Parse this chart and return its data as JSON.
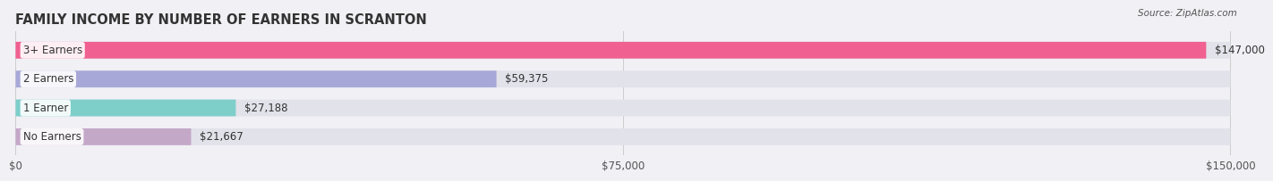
{
  "title": "FAMILY INCOME BY NUMBER OF EARNERS IN SCRANTON",
  "source": "Source: ZipAtlas.com",
  "categories": [
    "No Earners",
    "1 Earner",
    "2 Earners",
    "3+ Earners"
  ],
  "values": [
    21667,
    27188,
    59375,
    147000
  ],
  "bar_colors": [
    "#c4a8c8",
    "#7ececa",
    "#a8a8d8",
    "#f06090"
  ],
  "bar_labels": [
    "$21,667",
    "$27,188",
    "$59,375",
    "$147,000"
  ],
  "xlim": [
    0,
    150000
  ],
  "xticks": [
    0,
    75000,
    150000
  ],
  "xtick_labels": [
    "$0",
    "$75,000",
    "$150,000"
  ],
  "background_color": "#f0f0f5",
  "bar_bg_color": "#e2e2ea",
  "title_fontsize": 10.5,
  "label_fontsize": 8.5,
  "tick_fontsize": 8.5
}
